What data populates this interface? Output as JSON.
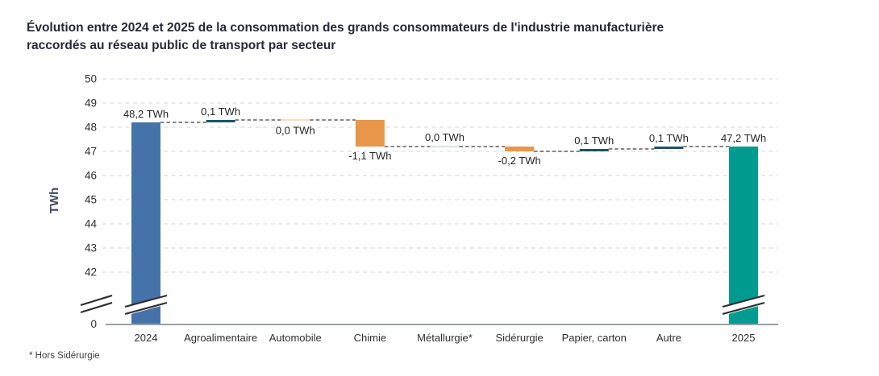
{
  "header": {
    "title_line1": "Évolution entre 2024 et 2025 de la consommation des grands consommateurs de l'industrie manufacturière",
    "title_line2": "raccordés au réseau public de transport par secteur"
  },
  "chart_data": {
    "type": "waterfall",
    "title": "Évolution entre 2024 et 2025 de la consommation des grands consommateurs de l'industrie manufacturière raccordés au réseau public de transport par secteur",
    "ylabel": "TWh",
    "yticks": [
      50,
      49,
      48,
      47,
      46,
      45,
      44,
      43,
      42
    ],
    "y_base_tick": "0",
    "axis_break": true,
    "ylim_displayed": [
      42,
      50
    ],
    "grid": "dashed-horizontal",
    "footnote": "* Hors Sidérurgie",
    "columns": [
      {
        "label": "2024",
        "type": "start",
        "value": 48.2,
        "display": "48,2 TWh",
        "label_pos": "above",
        "color": "#4572a9"
      },
      {
        "label": "Agroalimentaire",
        "type": "delta",
        "value": 0.1,
        "display": "0,1 TWh",
        "label_pos": "above",
        "color": "#1f5261"
      },
      {
        "label": "Automobile",
        "type": "delta",
        "value": 0.0,
        "display": "0,0 TWh",
        "label_pos": "below",
        "color": "#f3e0c3"
      },
      {
        "label": "Chimie",
        "type": "delta",
        "value": -1.1,
        "display": "-1,1 TWh",
        "label_pos": "below",
        "color": "#e8964a"
      },
      {
        "label": "Métallurgie*",
        "type": "delta",
        "value": 0.0,
        "display": "0,0 TWh",
        "label_pos": "above",
        "color": "#d8e5e8"
      },
      {
        "label": "Sidérurgie",
        "type": "delta",
        "value": -0.2,
        "display": "-0,2 TWh",
        "label_pos": "below",
        "color": "#e8964a"
      },
      {
        "label": "Papier, carton",
        "type": "delta",
        "value": 0.1,
        "display": "0,1 TWh",
        "label_pos": "above",
        "color": "#1f5261"
      },
      {
        "label": "Autre",
        "type": "delta",
        "value": 0.1,
        "display": "0,1 TWh",
        "label_pos": "above",
        "color": "#1f5261"
      },
      {
        "label": "2025",
        "type": "end",
        "value": 47.2,
        "display": "47,2 TWh",
        "label_pos": "above",
        "color": "#019b8f"
      }
    ],
    "colors": {
      "start_total": "#4572a9",
      "end_total": "#019b8f",
      "increase": "#1f5261",
      "decrease": "#e8964a",
      "zero_decrease": "#f3e0c3",
      "zero_neutral": "#d8e5e8",
      "connector": "#3d3d3d",
      "gridline": "#e3e3e3",
      "axis_line": "#9ca0a3",
      "break_mark": "#2e2e2e",
      "title_text": "#262a36",
      "tick_text": "#2f2f2f",
      "value_text": "#242424",
      "ylabel_text": "#3e4a64"
    }
  }
}
